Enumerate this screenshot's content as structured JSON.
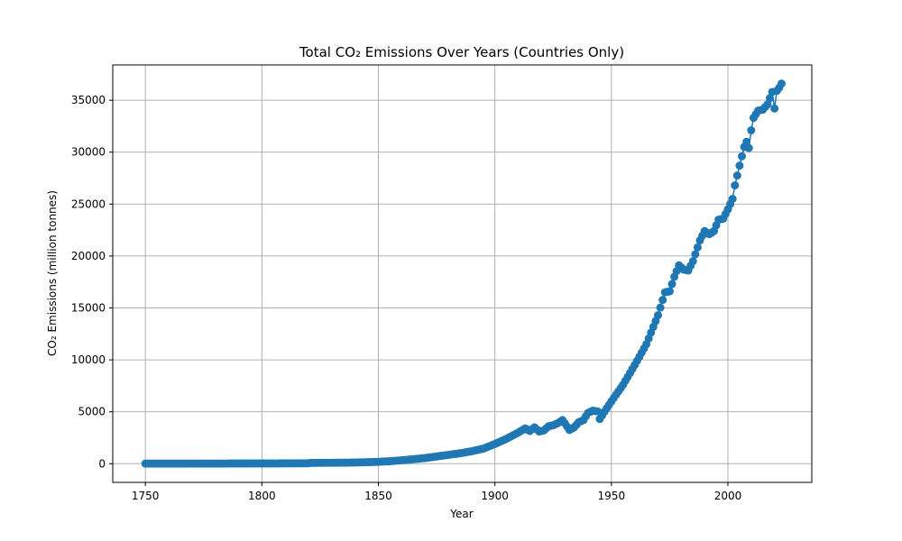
{
  "chart_data": {
    "type": "line",
    "title": "Total CO₂ Emissions Over Years (Countries Only)",
    "xlabel": "Year",
    "ylabel": "CO₂ Emissions (million tonnes)",
    "xlim": [
      1736,
      2036
    ],
    "ylim": [
      -1800,
      38400
    ],
    "xticks": [
      1750,
      1800,
      1850,
      1900,
      1950,
      2000
    ],
    "yticks": [
      0,
      5000,
      10000,
      15000,
      20000,
      25000,
      30000,
      35000
    ],
    "grid": true,
    "marker": "circle",
    "series": [
      {
        "color": "#1f77b4",
        "anchors": [
          [
            1750,
            9
          ],
          [
            1760,
            10
          ],
          [
            1770,
            12
          ],
          [
            1780,
            15
          ],
          [
            1790,
            20
          ],
          [
            1800,
            25
          ],
          [
            1810,
            30
          ],
          [
            1820,
            40
          ],
          [
            1821,
            80
          ],
          [
            1830,
            90
          ],
          [
            1840,
            110
          ],
          [
            1845,
            140
          ],
          [
            1850,
            180
          ],
          [
            1855,
            240
          ],
          [
            1860,
            330
          ],
          [
            1865,
            430
          ],
          [
            1870,
            540
          ],
          [
            1875,
            700
          ],
          [
            1880,
            850
          ],
          [
            1885,
            1000
          ],
          [
            1890,
            1200
          ],
          [
            1895,
            1450
          ],
          [
            1900,
            1900
          ],
          [
            1905,
            2400
          ],
          [
            1910,
            3000
          ],
          [
            1913,
            3400
          ],
          [
            1915,
            3150
          ],
          [
            1917,
            3500
          ],
          [
            1919,
            3100
          ],
          [
            1921,
            3200
          ],
          [
            1923,
            3600
          ],
          [
            1925,
            3700
          ],
          [
            1927,
            3900
          ],
          [
            1929,
            4200
          ],
          [
            1930,
            3900
          ],
          [
            1932,
            3250
          ],
          [
            1934,
            3500
          ],
          [
            1936,
            4000
          ],
          [
            1938,
            4200
          ],
          [
            1940,
            4900
          ],
          [
            1942,
            5100
          ],
          [
            1944,
            5050
          ],
          [
            1945,
            4300
          ],
          [
            1947,
            5000
          ],
          [
            1950,
            6000
          ],
          [
            1955,
            7600
          ],
          [
            1960,
            9500
          ],
          [
            1965,
            11500
          ],
          [
            1970,
            14300
          ],
          [
            1973,
            16500
          ],
          [
            1975,
            16600
          ],
          [
            1977,
            18000
          ],
          [
            1979,
            19100
          ],
          [
            1981,
            18700
          ],
          [
            1983,
            18600
          ],
          [
            1985,
            19500
          ],
          [
            1988,
            21500
          ],
          [
            1990,
            22400
          ],
          [
            1992,
            22100
          ],
          [
            1994,
            22400
          ],
          [
            1996,
            23500
          ],
          [
            1998,
            23600
          ],
          [
            2000,
            24500
          ],
          [
            2002,
            25500
          ],
          [
            2003,
            26800
          ],
          [
            2005,
            28700
          ],
          [
            2007,
            30500
          ],
          [
            2008,
            31000
          ],
          [
            2009,
            30400
          ],
          [
            2010,
            32100
          ],
          [
            2011,
            33300
          ],
          [
            2013,
            34000
          ],
          [
            2015,
            34100
          ],
          [
            2017,
            34600
          ],
          [
            2019,
            35800
          ],
          [
            2020,
            34200
          ],
          [
            2021,
            35900
          ],
          [
            2022,
            36200
          ],
          [
            2023,
            36600
          ]
        ]
      }
    ]
  }
}
